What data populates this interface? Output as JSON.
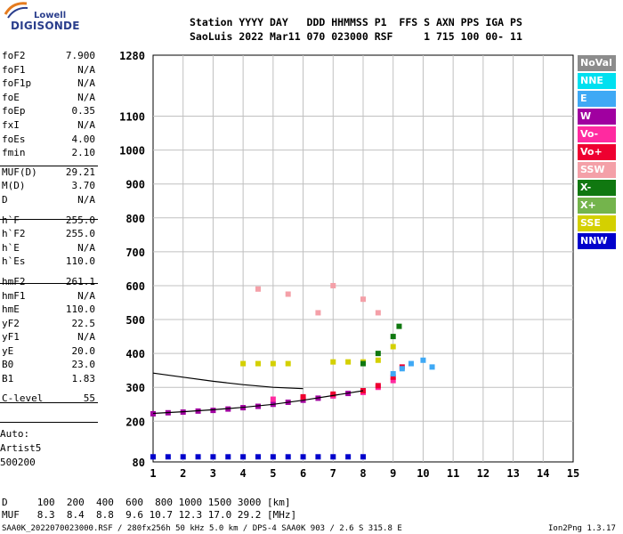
{
  "logo": {
    "brand": "Lowell",
    "name": "DIGISONDE"
  },
  "header": {
    "line1": "Station YYYY DAY   DDD HHMMSS P1  FFS S AXN PPS IGA PS",
    "line2": "SaoLuis 2022 Mar11 070 023000 RSF     1 715 100 00- 11"
  },
  "params": [
    {
      "name": "foF2",
      "value": "7.900"
    },
    {
      "name": "foF1",
      "value": "N/A"
    },
    {
      "name": "foF1p",
      "value": "N/A"
    },
    {
      "name": "foE",
      "value": "N/A"
    },
    {
      "name": "foEp",
      "value": "0.35"
    },
    {
      "name": "fxI",
      "value": "N/A"
    },
    {
      "name": "foEs",
      "value": "4.00"
    },
    {
      "name": "fmin",
      "value": "2.10"
    },
    {
      "name": "MUF(D)",
      "value": "29.21"
    },
    {
      "name": "M(D)",
      "value": "3.70"
    },
    {
      "name": "D",
      "value": "N/A"
    },
    {
      "name": "h`F",
      "value": "255.0"
    },
    {
      "name": "h`F2",
      "value": "255.0"
    },
    {
      "name": "h`E",
      "value": "N/A"
    },
    {
      "name": "h`Es",
      "value": "110.0"
    },
    {
      "name": "hmF2",
      "value": "261.1"
    },
    {
      "name": "hmF1",
      "value": "N/A"
    },
    {
      "name": "hmE",
      "value": "110.0"
    },
    {
      "name": "yF2",
      "value": "22.5"
    },
    {
      "name": "yF1",
      "value": "N/A"
    },
    {
      "name": "yE",
      "value": "20.0"
    },
    {
      "name": "B0",
      "value": "23.0"
    },
    {
      "name": "B1",
      "value": "1.83"
    },
    {
      "name": "C-level",
      "value": "55"
    }
  ],
  "autoscaling": {
    "line1": "Auto:",
    "line2": "Artist5",
    "line3": "500200"
  },
  "legend": [
    {
      "label": "NoVal",
      "color": "#8c8c8c"
    },
    {
      "label": "NNE",
      "color": "#00e0f0"
    },
    {
      "label": "E",
      "color": "#3fa9f5"
    },
    {
      "label": "W",
      "color": "#a000a0"
    },
    {
      "label": "Vo-",
      "color": "#ff2aa0"
    },
    {
      "label": "Vo+",
      "color": "#ee0030"
    },
    {
      "label": "SSW",
      "color": "#f4a0a8"
    },
    {
      "label": "X-",
      "color": "#107810"
    },
    {
      "label": "X+",
      "color": "#74b44c"
    },
    {
      "label": "SSE",
      "color": "#d4d000"
    },
    {
      "label": "NNW",
      "color": "#0000cc"
    }
  ],
  "footer": {
    "distance_row": "D     100  200  400  600  800 1000 1500 3000 [km]",
    "muf_row": "MUF   8.3  8.4  8.8  9.6 10.7 12.3 17.0 29.2 [MHz]",
    "file_info": "SAA0K_2022070023000.RSF / 280fx256h 50 kHz 5.0 km / DPS-4 SAA0K 903 / 2.6 S 315.8 E",
    "version": "Ion2Png 1.3.17"
  },
  "chart_data": {
    "type": "scatter",
    "title": "",
    "xlabel": "",
    "ylabel": "",
    "xlim": [
      1,
      15
    ],
    "ylim": [
      80,
      1280
    ],
    "x_ticks": [
      1,
      2,
      3,
      4,
      5,
      6,
      7,
      8,
      9,
      10,
      11,
      12,
      13,
      14,
      15
    ],
    "y_ticks": [
      80,
      200,
      300,
      400,
      500,
      600,
      700,
      800,
      900,
      1000,
      1100,
      1280
    ],
    "grid": true,
    "series": [
      {
        "name": "NNW",
        "x": [
          1.0,
          1.5,
          2.0,
          2.5,
          3.0,
          3.5,
          4.0,
          4.5,
          5.0,
          5.5,
          6.0,
          6.5,
          7.0,
          7.5,
          8.0
        ],
        "y": [
          95,
          95,
          95,
          95,
          95,
          95,
          95,
          95,
          95,
          95,
          95,
          95,
          95,
          95,
          95
        ]
      },
      {
        "name": "W",
        "x": [
          1.0,
          1.5,
          2.0,
          2.5,
          3.0,
          3.5,
          4.0,
          4.5,
          5.0,
          5.5,
          6.0,
          6.5,
          7.0,
          7.5,
          8.0
        ],
        "y": [
          222,
          225,
          227,
          230,
          232,
          236,
          240,
          244,
          250,
          256,
          262,
          268,
          275,
          282,
          290
        ]
      },
      {
        "name": "Vo-",
        "x": [
          5.0,
          6.0,
          7.0,
          8.0,
          8.5,
          9.0
        ],
        "y": [
          265,
          268,
          275,
          285,
          300,
          320
        ]
      },
      {
        "name": "Vo+",
        "x": [
          6.0,
          7.0,
          8.0,
          8.5,
          9.0,
          9.3
        ],
        "y": [
          272,
          280,
          290,
          305,
          330,
          360
        ]
      },
      {
        "name": "E",
        "x": [
          9.0,
          9.3,
          9.6,
          10.0,
          10.3
        ],
        "y": [
          340,
          355,
          370,
          380,
          360
        ]
      },
      {
        "name": "SSE",
        "x": [
          4.0,
          4.5,
          5.0,
          5.5,
          7.0,
          7.5,
          8.0,
          8.5,
          9.0
        ],
        "y": [
          370,
          370,
          370,
          370,
          375,
          375,
          375,
          380,
          420
        ]
      },
      {
        "name": "X-",
        "x": [
          8.0,
          8.5,
          9.0,
          9.2
        ],
        "y": [
          370,
          400,
          450,
          480
        ]
      },
      {
        "name": "SSW",
        "x": [
          4.5,
          5.5,
          6.5,
          7.0,
          8.0,
          8.5
        ],
        "y": [
          590,
          575,
          520,
          600,
          560,
          520
        ]
      }
    ],
    "trace_curves": [
      {
        "name": "F2 trace",
        "x": [
          1.0,
          2.0,
          3.0,
          4.0,
          5.0,
          6.0,
          7.0,
          8.0
        ],
        "y": [
          223,
          228,
          234,
          241,
          250,
          262,
          276,
          290
        ]
      },
      {
        "name": "upper trace",
        "x": [
          1.0,
          2.0,
          3.0,
          4.0,
          5.0,
          6.0
        ],
        "y": [
          342,
          330,
          318,
          308,
          300,
          296
        ]
      }
    ]
  }
}
